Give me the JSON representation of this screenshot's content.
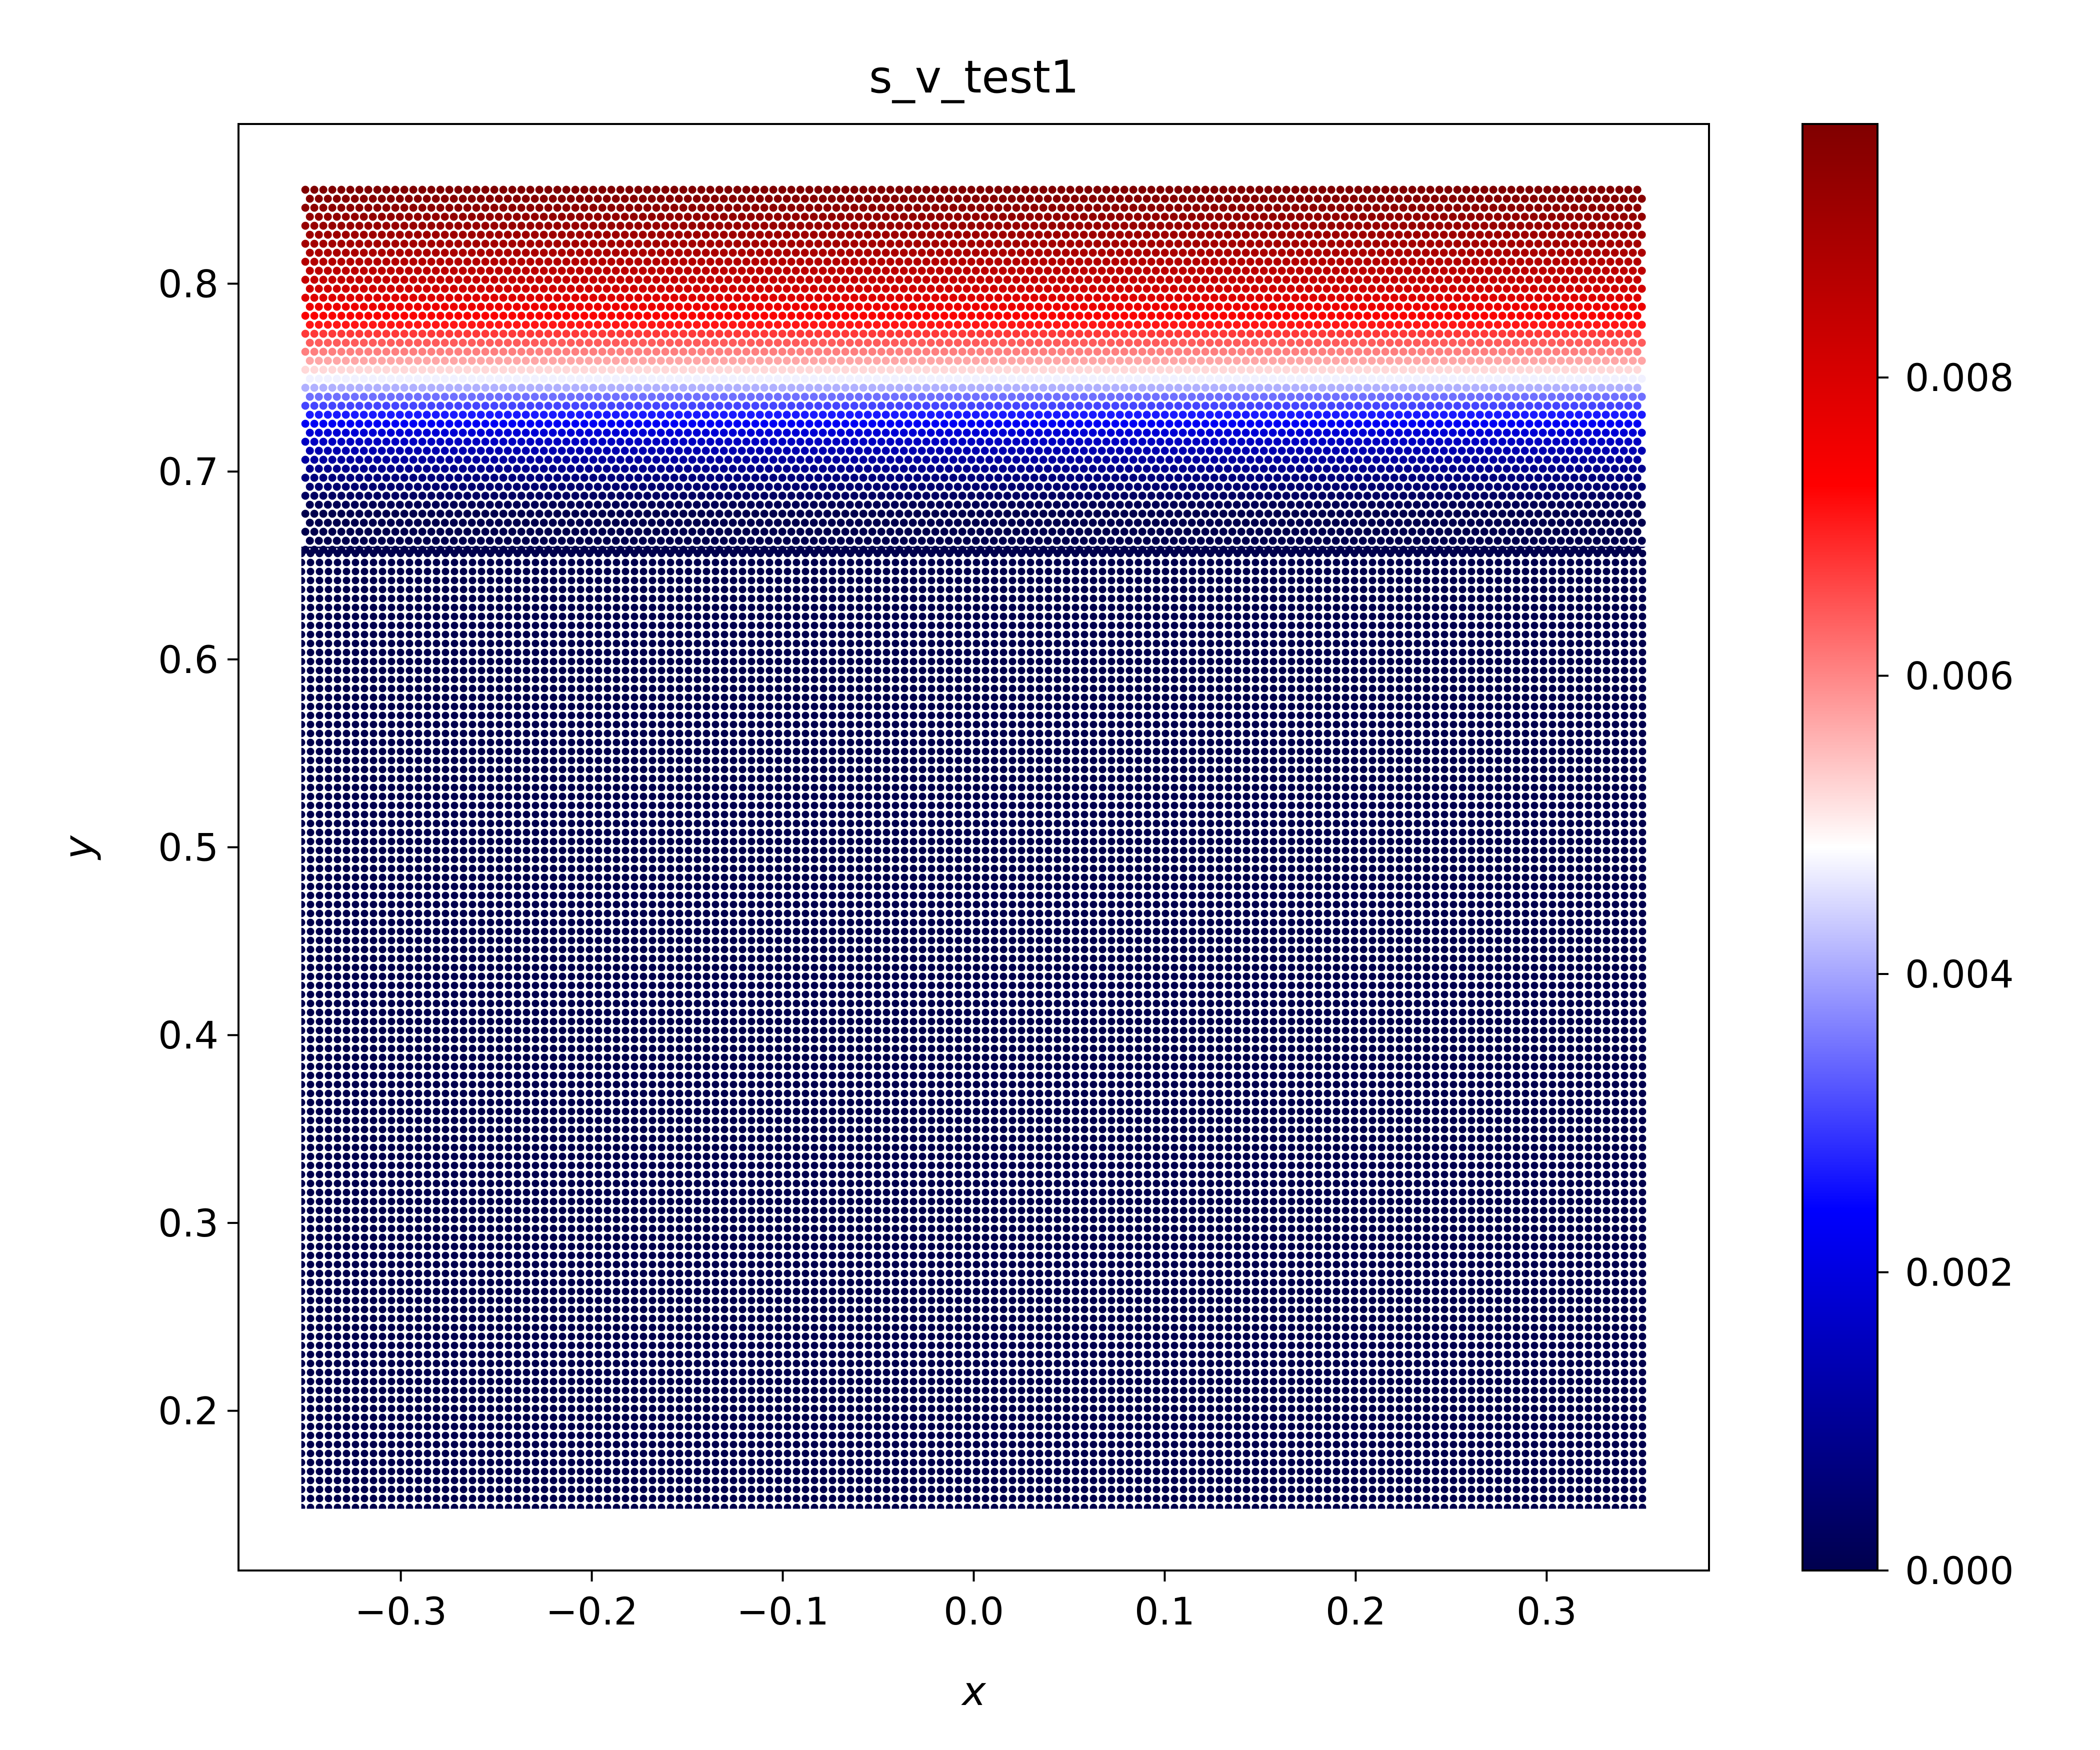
{
  "chart_data": {
    "type": "scatter",
    "title": "s_v_test1",
    "xlabel": "x",
    "ylabel": "y",
    "xlim": [
      -0.385,
      0.385
    ],
    "ylim": [
      0.115,
      0.885
    ],
    "domain": {
      "x": [
        -0.35,
        0.35
      ],
      "y": [
        0.15,
        0.85
      ]
    },
    "xticks": [
      "−0.3",
      "−0.2",
      "−0.1",
      "0.0",
      "0.1",
      "0.2",
      "0.3"
    ],
    "xtick_values": [
      -0.3,
      -0.2,
      -0.1,
      0.0,
      0.1,
      0.2,
      0.3
    ],
    "yticks": [
      "0.2",
      "0.3",
      "0.4",
      "0.5",
      "0.6",
      "0.7",
      "0.8"
    ],
    "ytick_values": [
      0.2,
      0.3,
      0.4,
      0.5,
      0.6,
      0.7,
      0.8
    ],
    "colorbar": {
      "colormap": "seismic",
      "range": [
        0.0,
        0.0097
      ],
      "ticks": [
        "0.000",
        "0.002",
        "0.004",
        "0.006",
        "0.008"
      ],
      "tick_values": [
        0.0,
        0.002,
        0.004,
        0.006,
        0.008
      ]
    },
    "value_profile": {
      "description": "",
      "y": [
        0.15,
        0.68,
        0.7,
        0.72,
        0.74,
        0.75,
        0.76,
        0.78,
        0.8,
        0.82,
        0.85
      ],
      "value": [
        0.0,
        0.0,
        0.0008,
        0.0018,
        0.0035,
        0.0048,
        0.0058,
        0.0072,
        0.0083,
        0.009,
        0.0097
      ]
    },
    "grid": false,
    "legend": "none"
  }
}
